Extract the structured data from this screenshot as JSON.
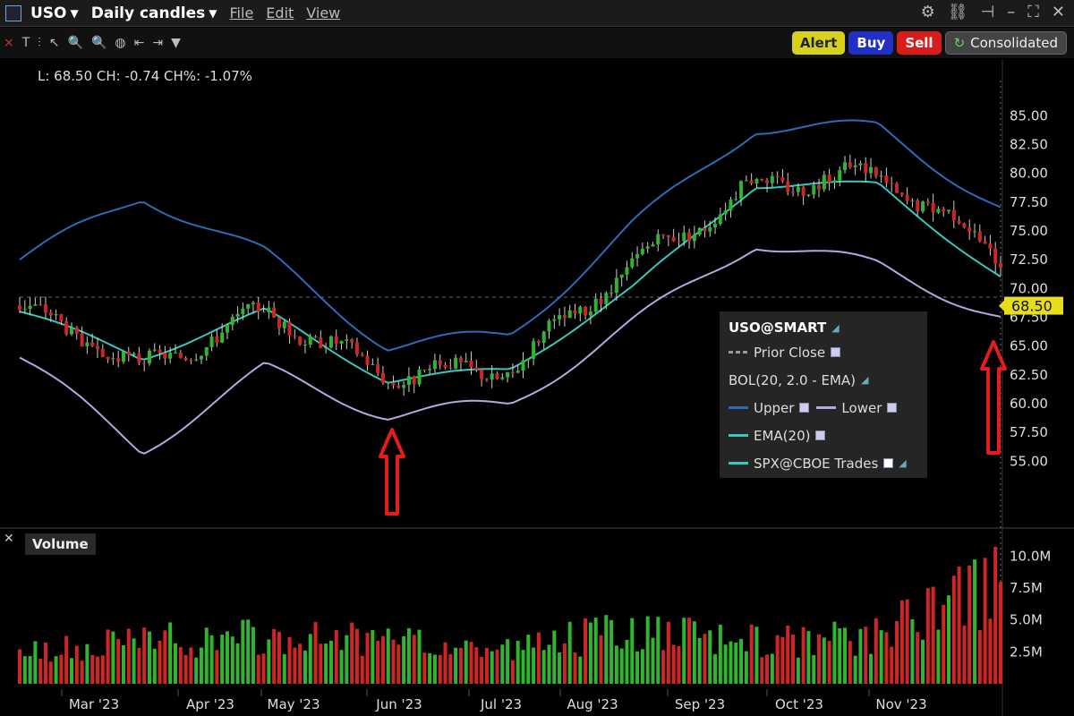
{
  "toolbar": {
    "symbol": "USO",
    "period": "Daily candles",
    "menu_file": "File",
    "menu_edit": "Edit",
    "menu_view": "View"
  },
  "actions": {
    "alert": "Alert",
    "buy": "Buy",
    "sell": "Sell",
    "consolidated": "Consolidated"
  },
  "readout": "L: 68.50 CH: -0.74 CH%: -1.07%",
  "legend": {
    "title": "USO@SMART",
    "prior_close": "Prior Close",
    "bol": "BOL(20, 2.0 - EMA)",
    "upper": "Upper",
    "lower": "Lower",
    "ema": "EMA(20)",
    "spx": "SPX@CBOE Trades"
  },
  "volume_label": "Volume",
  "price_axis": [
    "85.00",
    "82.50",
    "80.00",
    "77.50",
    "75.00",
    "72.50",
    "70.00",
    "67.50",
    "65.00",
    "62.50",
    "60.00",
    "57.50",
    "55.00"
  ],
  "last_price": "68.50",
  "volume_axis": [
    "10.0M",
    "7.5M",
    "5.0M",
    "2.5M"
  ],
  "months": [
    "Mar '23",
    "Apr '23",
    "May '23",
    "Jun '23",
    "Jul '23",
    "Aug '23",
    "Sep '23",
    "Oct '23",
    "Nov '23"
  ],
  "colors": {
    "upper": "#2b6cb8",
    "lower": "#b8a6e0",
    "ema": "#38c7bc",
    "up": "#2fb52f",
    "down": "#d02525",
    "arrow": "#e51c1c",
    "last_badge": "#e7dd18"
  },
  "chart_data": {
    "type": "candlestick",
    "x": [
      "Mar '23",
      "Apr '23",
      "May '23",
      "Jun '23",
      "Jul '23",
      "Aug '23",
      "Sep '23",
      "Oct '23",
      "Nov '23"
    ],
    "close_approx": [
      68.5,
      63.0,
      68.0,
      62.5,
      63.0,
      72.0,
      79.0,
      80.0,
      73.0
    ],
    "upper_band_approx": [
      72.5,
      78.0,
      73.0,
      65.0,
      66.0,
      75.5,
      84.0,
      84.0,
      77.0
    ],
    "lower_band_approx": [
      64.0,
      56.0,
      63.0,
      59.0,
      60.0,
      67.0,
      74.0,
      72.0,
      67.5
    ],
    "ema_approx": [
      68.0,
      64.0,
      68.0,
      62.0,
      63.0,
      70.0,
      79.0,
      79.0,
      71.0
    ],
    "last_price": 68.5,
    "ylim": [
      53.0,
      86.5
    ],
    "volume_approx_M": [
      2.5,
      3.5,
      4.0,
      3.5,
      3.0,
      4.5,
      3.5,
      4.0,
      8.3
    ],
    "volume_ylim": [
      0,
      11.5
    ]
  }
}
